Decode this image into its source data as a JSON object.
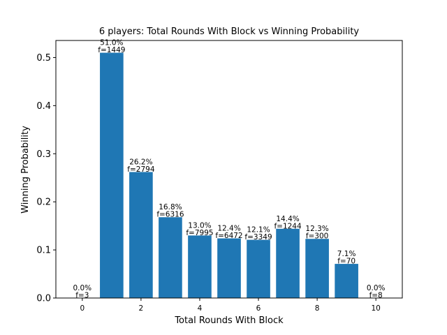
{
  "chart_data": {
    "type": "bar",
    "title": "6 players: Total Rounds With Block vs Winning Probability",
    "xlabel": "Total Rounds With Block",
    "ylabel": "Winning Probability",
    "x": [
      0,
      1,
      2,
      3,
      4,
      5,
      6,
      7,
      8,
      9,
      10
    ],
    "values": [
      0.0,
      0.51,
      0.262,
      0.168,
      0.13,
      0.124,
      0.121,
      0.144,
      0.123,
      0.071,
      0.0
    ],
    "annotations": [
      {
        "pct": "0.0%",
        "freq": "f=3"
      },
      {
        "pct": "51.0%",
        "freq": "f=1449"
      },
      {
        "pct": "26.2%",
        "freq": "f=2794"
      },
      {
        "pct": "16.8%",
        "freq": "f=6316"
      },
      {
        "pct": "13.0%",
        "freq": "f=7995"
      },
      {
        "pct": "12.4%",
        "freq": "f=6472"
      },
      {
        "pct": "12.1%",
        "freq": "f=3349"
      },
      {
        "pct": "14.4%",
        "freq": "f=1244"
      },
      {
        "pct": "12.3%",
        "freq": "f=300"
      },
      {
        "pct": "7.1%",
        "freq": "f=70"
      },
      {
        "pct": "0.0%",
        "freq": "f=8"
      }
    ],
    "x_ticks": [
      "0",
      "2",
      "4",
      "6",
      "8",
      "10"
    ],
    "x_tick_values": [
      0,
      2,
      4,
      6,
      8,
      10
    ],
    "y_ticks": [
      "0.0",
      "0.1",
      "0.2",
      "0.3",
      "0.4",
      "0.5"
    ],
    "y_tick_values": [
      0.0,
      0.1,
      0.2,
      0.3,
      0.4,
      0.5
    ],
    "xlim": [
      -0.9,
      10.9
    ],
    "ylim": [
      0,
      0.5355
    ],
    "bar_color": "#1f77b4",
    "grid": false,
    "legend": false
  }
}
